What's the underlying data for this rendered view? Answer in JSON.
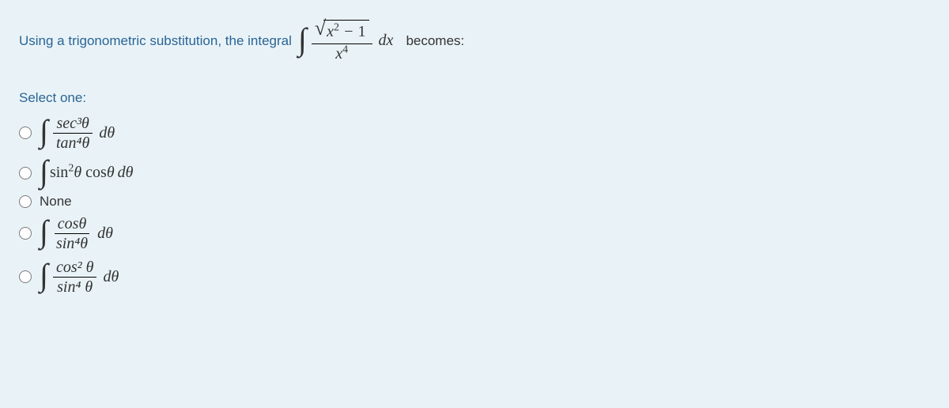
{
  "question": {
    "prefix": "Using a trigonometric substitution, the integral",
    "integral": {
      "num_expr": "x² − 1",
      "den_expr": "x⁴",
      "differential": "dx"
    },
    "suffix": "becomes:"
  },
  "select_label": "Select one:",
  "options": [
    {
      "type": "frac_integral",
      "num": "sec³θ",
      "den": "tan⁴θ",
      "diff": "dθ"
    },
    {
      "type": "plain_integral",
      "expr": "sin²θ cosθ",
      "diff": "dθ"
    },
    {
      "type": "text",
      "label": "None"
    },
    {
      "type": "frac_integral",
      "num": "cosθ",
      "den": "sin⁴θ",
      "diff": "dθ"
    },
    {
      "type": "frac_integral",
      "num": "cos² θ",
      "den": "sin⁴ θ",
      "diff": "dθ"
    }
  ],
  "colors": {
    "background": "#e9f3f7",
    "link": "#2a6496",
    "text": "#333333"
  }
}
